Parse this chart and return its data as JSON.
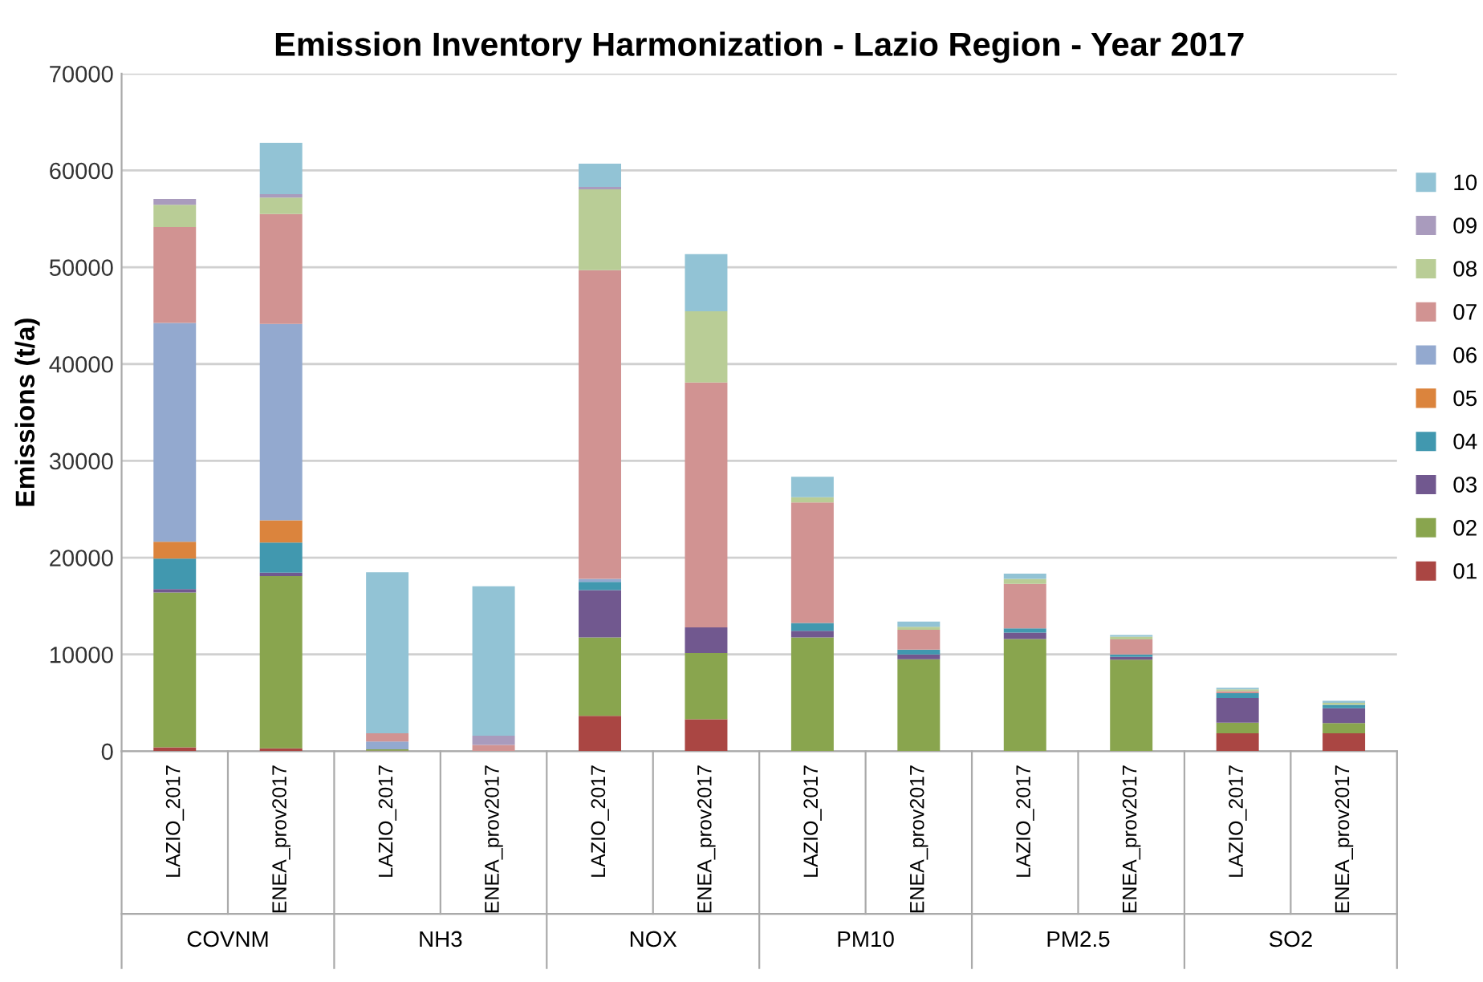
{
  "chart_data": {
    "type": "bar",
    "stacked": true,
    "title": "Emission Inventory Harmonization - Lazio Region - Year 2017",
    "ylabel": "Emissions (t/a)",
    "categories": [
      "LAZIO_2017",
      "ENEA_prov2017",
      "LAZIO_2017",
      "ENEA_prov2017",
      "LAZIO_2017",
      "ENEA_prov2017",
      "LAZIO_2017",
      "ENEA_prov2017",
      "LAZIO_2017",
      "ENEA_prov2017",
      "LAZIO_2017",
      "ENEA_prov2017"
    ],
    "annotations": [
      "COVNM",
      "NH3",
      "NOX",
      "PM10",
      "PM2.5",
      "SO2"
    ],
    "series": [
      {
        "name": "01",
        "color": "#aa4643",
        "values": [
          400,
          300,
          50,
          0,
          3650,
          3300,
          0,
          0,
          0,
          0,
          1850,
          1850
        ]
      },
      {
        "name": "02",
        "color": "#89a54e",
        "values": [
          16000,
          17800,
          150,
          0,
          8100,
          6850,
          11750,
          9500,
          11600,
          9450,
          1100,
          1050
        ]
      },
      {
        "name": "03",
        "color": "#71588f",
        "values": [
          350,
          350,
          0,
          0,
          4900,
          2650,
          700,
          500,
          650,
          300,
          2550,
          1550
        ]
      },
      {
        "name": "04",
        "color": "#4198af",
        "values": [
          3150,
          3100,
          0,
          0,
          850,
          0,
          800,
          500,
          450,
          250,
          500,
          350
        ]
      },
      {
        "name": "05",
        "color": "#db843d",
        "values": [
          1750,
          2300,
          0,
          0,
          0,
          0,
          0,
          0,
          0,
          0,
          0,
          0
        ]
      },
      {
        "name": "06",
        "color": "#93a9cf",
        "values": [
          22600,
          20300,
          800,
          0,
          300,
          0,
          0,
          0,
          0,
          0,
          0,
          0
        ]
      },
      {
        "name": "07",
        "color": "#d19392",
        "values": [
          9900,
          11350,
          850,
          650,
          31900,
          25300,
          12450,
          2050,
          4600,
          1550,
          200,
          0
        ]
      },
      {
        "name": "08",
        "color": "#b9cd96",
        "values": [
          2300,
          1700,
          0,
          0,
          8350,
          7350,
          550,
          300,
          500,
          300,
          200,
          200
        ]
      },
      {
        "name": "09",
        "color": "#a99bbd",
        "values": [
          600,
          350,
          0,
          950,
          250,
          0,
          0,
          0,
          0,
          0,
          0,
          0
        ]
      },
      {
        "name": "10",
        "color": "#92c3d5",
        "values": [
          0,
          5300,
          16650,
          15450,
          2400,
          5900,
          2100,
          550,
          550,
          150,
          150,
          200
        ]
      }
    ],
    "ylim": [
      0,
      70000
    ],
    "yticks": [
      0,
      10000,
      20000,
      30000,
      40000,
      50000,
      60000,
      70000
    ],
    "grid": "y",
    "legend": "right"
  }
}
